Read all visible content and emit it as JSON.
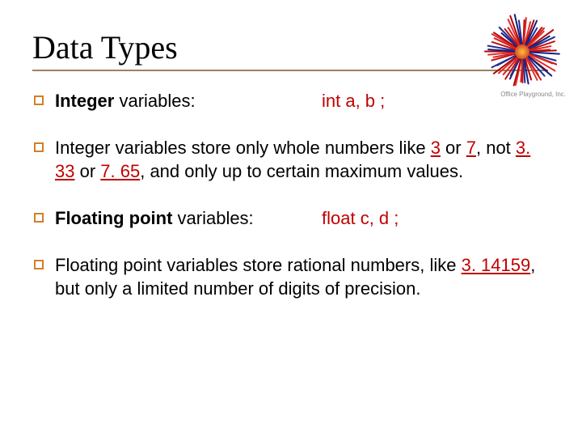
{
  "title": "Data Types",
  "decor_caption": "Office Playground, Inc.",
  "bullets": {
    "b1_label_prefix_bold": "Integer",
    "b1_label_suffix": " variables:",
    "b1_code": "int a, b ;",
    "b2_p1": "Integer variables store only whole numbers like ",
    "b2_n1": "3",
    "b2_p2": " or ",
    "b2_n2": "7",
    "b2_p3": ", not ",
    "b2_n3": "3. 33",
    "b2_p4": " or ",
    "b2_n4": "7. 65",
    "b2_p5": ", and only up to certain maximum values.",
    "b3_label_prefix_bold": "Floating point",
    "b3_label_suffix": " variables:",
    "b3_code": "float c, d ;",
    "b4_p1": "Floating point variables store rational numbers, like ",
    "b4_n1": "3. 14159",
    "b4_p2": ", but only a limited number of digits of precision."
  },
  "colors": {
    "underline": "#a08060",
    "bullet_border": "#d08028",
    "red": "#c00000"
  },
  "koosh": {
    "strand_count": 60,
    "colors": [
      "#c01010",
      "#d82020",
      "#e03030",
      "#b00808",
      "#102080",
      "#203090"
    ]
  }
}
